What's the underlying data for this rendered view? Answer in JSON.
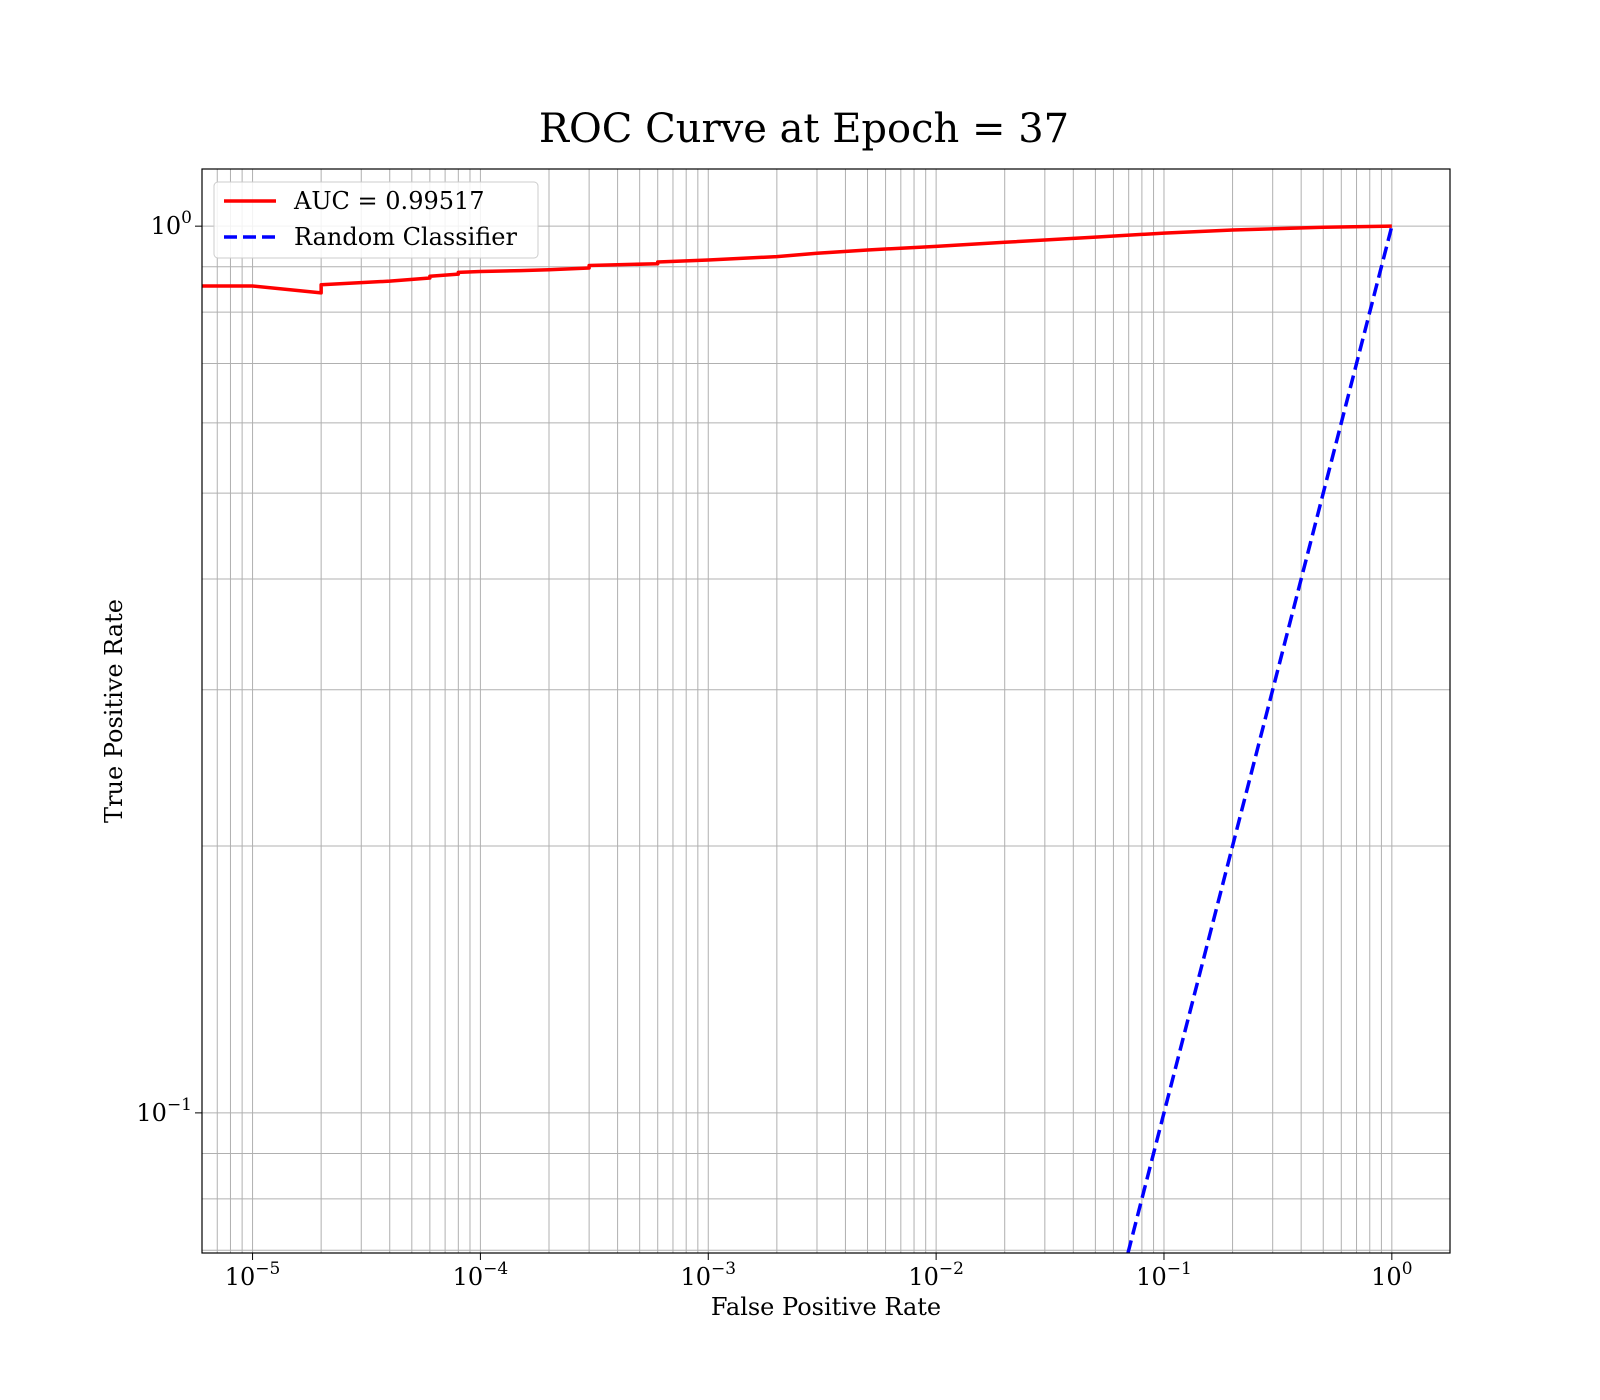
{
  "chart_data": {
    "type": "line",
    "title": "ROC Curve at Epoch = 37",
    "xlabel": "False Positive Rate",
    "ylabel": "True Positive Rate",
    "xscale": "log",
    "yscale": "log",
    "xlim": [
      6e-06,
      1.8
    ],
    "ylim": [
      0.0695,
      1.16
    ],
    "grid": "major and minor",
    "legend_placement": "top-left",
    "x_tick_labels": [
      {
        "value": 1e-05,
        "base": "10",
        "exp": "−5"
      },
      {
        "value": 0.0001,
        "base": "10",
        "exp": "−4"
      },
      {
        "value": 0.001,
        "base": "10",
        "exp": "−3"
      },
      {
        "value": 0.01,
        "base": "10",
        "exp": "−2"
      },
      {
        "value": 0.1,
        "base": "10",
        "exp": "−1"
      },
      {
        "value": 1,
        "base": "10",
        "exp": "0"
      }
    ],
    "y_tick_labels": [
      {
        "value": 0.1,
        "base": "10",
        "exp": "−1"
      },
      {
        "value": 1,
        "base": "10",
        "exp": "0"
      }
    ],
    "series": [
      {
        "name": "AUC = 0.99517",
        "color": "#ff0000",
        "style": "solid",
        "x": [
          6e-06,
          1e-05,
          2e-05,
          2e-05,
          4e-05,
          6e-05,
          6e-05,
          8e-05,
          8e-05,
          0.0001,
          0.00015,
          0.0002,
          0.0003,
          0.0003,
          0.0006,
          0.0006,
          0.001,
          0.002,
          0.003,
          0.005,
          0.01,
          0.02,
          0.05,
          0.1,
          0.2,
          0.5,
          1.0
        ],
        "y": [
          0.856,
          0.856,
          0.841,
          0.859,
          0.867,
          0.874,
          0.878,
          0.883,
          0.887,
          0.889,
          0.891,
          0.893,
          0.897,
          0.903,
          0.907,
          0.911,
          0.916,
          0.924,
          0.932,
          0.94,
          0.949,
          0.959,
          0.972,
          0.982,
          0.99,
          0.997,
          1.0
        ]
      },
      {
        "name": "Random Classifier",
        "color": "#0000ff",
        "style": "dashed",
        "x": [
          0.0695,
          1.0
        ],
        "y": [
          0.0695,
          1.0
        ]
      }
    ]
  }
}
